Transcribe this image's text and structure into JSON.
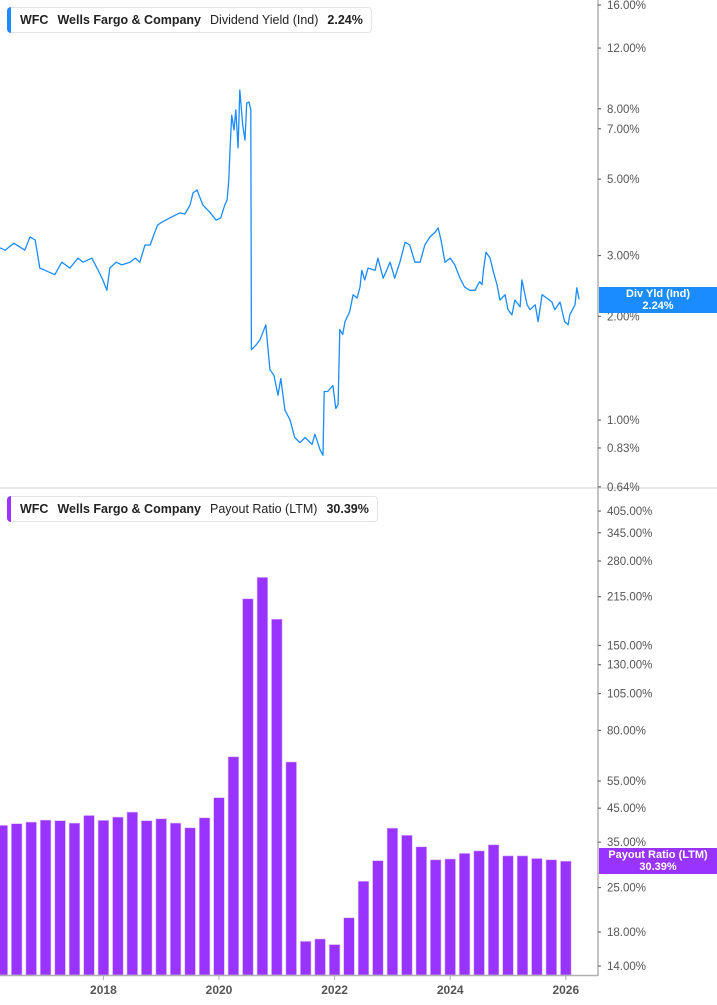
{
  "colors": {
    "yield": "#1a8cff",
    "payout": "#9933ff",
    "axis": "#b0b0b0",
    "text": "#555555"
  },
  "legends": [
    {
      "ticker": "WFC",
      "company": "Wells Fargo & Company",
      "metric": "Dividend Yield (Ind)",
      "value": "2.24%"
    },
    {
      "ticker": "WFC",
      "company": "Wells Fargo & Company",
      "metric": "Payout Ratio (LTM)",
      "value": "30.39%"
    }
  ],
  "tags": [
    {
      "label": "Div Yld (Ind)",
      "value": "2.24%"
    },
    {
      "label": "Payout Ratio (LTM)",
      "value": "30.39%"
    }
  ],
  "chart_data": [
    {
      "type": "line",
      "title": "Dividend Yield (Ind)",
      "yscale": "log",
      "ylim": [
        0.64,
        16
      ],
      "xlim": [
        2016.21,
        2026.56
      ],
      "yticks": [
        "16.00%",
        "12.00%",
        "8.00%",
        "7.00%",
        "5.00%",
        "3.00%",
        "2.00%",
        "1.00%",
        "0.83%",
        "0.64%"
      ],
      "ytick_values": [
        16,
        12,
        8,
        7,
        5,
        3,
        2,
        1,
        0.83,
        0.64
      ],
      "grid": false,
      "series": [
        {
          "name": "Dividend Yield (Ind)",
          "points": [
            [
              2016.21,
              3.16
            ],
            [
              2016.3,
              3.11
            ],
            [
              2016.45,
              3.26
            ],
            [
              2016.64,
              3.11
            ],
            [
              2016.73,
              3.4
            ],
            [
              2016.82,
              3.33
            ],
            [
              2016.9,
              2.76
            ],
            [
              2016.99,
              2.72
            ],
            [
              2017.16,
              2.64
            ],
            [
              2017.28,
              2.87
            ],
            [
              2017.42,
              2.76
            ],
            [
              2017.56,
              2.95
            ],
            [
              2017.65,
              2.87
            ],
            [
              2017.8,
              2.95
            ],
            [
              2017.91,
              2.72
            ],
            [
              2017.99,
              2.55
            ],
            [
              2018.06,
              2.38
            ],
            [
              2018.11,
              2.76
            ],
            [
              2018.22,
              2.87
            ],
            [
              2018.32,
              2.82
            ],
            [
              2018.46,
              2.87
            ],
            [
              2018.55,
              2.95
            ],
            [
              2018.63,
              2.87
            ],
            [
              2018.72,
              3.22
            ],
            [
              2018.81,
              3.22
            ],
            [
              2018.89,
              3.51
            ],
            [
              2018.94,
              3.68
            ],
            [
              2019.01,
              3.75
            ],
            [
              2019.15,
              3.86
            ],
            [
              2019.32,
              3.99
            ],
            [
              2019.41,
              3.96
            ],
            [
              2019.5,
              4.21
            ],
            [
              2019.55,
              4.56
            ],
            [
              2019.62,
              4.65
            ],
            [
              2019.72,
              4.21
            ],
            [
              2019.84,
              4.01
            ],
            [
              2019.95,
              3.8
            ],
            [
              2020.03,
              3.86
            ],
            [
              2020.1,
              4.21
            ],
            [
              2020.14,
              4.35
            ],
            [
              2020.17,
              4.97
            ],
            [
              2020.19,
              6.07
            ],
            [
              2020.22,
              7.67
            ],
            [
              2020.26,
              6.94
            ],
            [
              2020.29,
              7.94
            ],
            [
              2020.33,
              6.16
            ],
            [
              2020.36,
              9.07
            ],
            [
              2020.41,
              7.18
            ],
            [
              2020.45,
              6.49
            ],
            [
              2020.48,
              8.31
            ],
            [
              2020.52,
              8.37
            ],
            [
              2020.55,
              7.94
            ],
            [
              2020.56,
              1.6
            ],
            [
              2020.64,
              1.65
            ],
            [
              2020.71,
              1.71
            ],
            [
              2020.81,
              1.89
            ],
            [
              2020.88,
              1.4
            ],
            [
              2020.95,
              1.35
            ],
            [
              2021.02,
              1.18
            ],
            [
              2021.07,
              1.32
            ],
            [
              2021.14,
              1.07
            ],
            [
              2021.23,
              1.0
            ],
            [
              2021.31,
              0.89
            ],
            [
              2021.4,
              0.86
            ],
            [
              2021.49,
              0.89
            ],
            [
              2021.61,
              0.85
            ],
            [
              2021.66,
              0.91
            ],
            [
              2021.75,
              0.82
            ],
            [
              2021.8,
              0.79
            ],
            [
              2021.82,
              1.21
            ],
            [
              2021.88,
              1.21
            ],
            [
              2021.97,
              1.26
            ],
            [
              2022.02,
              1.08
            ],
            [
              2022.06,
              1.11
            ],
            [
              2022.09,
              1.83
            ],
            [
              2022.14,
              1.77
            ],
            [
              2022.18,
              1.93
            ],
            [
              2022.26,
              2.06
            ],
            [
              2022.32,
              2.31
            ],
            [
              2022.39,
              2.26
            ],
            [
              2022.44,
              2.43
            ],
            [
              2022.47,
              2.72
            ],
            [
              2022.52,
              2.55
            ],
            [
              2022.58,
              2.76
            ],
            [
              2022.7,
              2.72
            ],
            [
              2022.75,
              2.95
            ],
            [
              2022.84,
              2.58
            ],
            [
              2022.96,
              2.87
            ],
            [
              2023.04,
              2.58
            ],
            [
              2023.13,
              2.87
            ],
            [
              2023.22,
              3.28
            ],
            [
              2023.3,
              3.22
            ],
            [
              2023.39,
              2.87
            ],
            [
              2023.48,
              2.87
            ],
            [
              2023.56,
              3.22
            ],
            [
              2023.65,
              3.4
            ],
            [
              2023.74,
              3.51
            ],
            [
              2023.79,
              3.61
            ],
            [
              2023.84,
              3.33
            ],
            [
              2023.91,
              2.87
            ],
            [
              2024.0,
              2.95
            ],
            [
              2024.08,
              2.82
            ],
            [
              2024.17,
              2.58
            ],
            [
              2024.25,
              2.43
            ],
            [
              2024.34,
              2.38
            ],
            [
              2024.43,
              2.38
            ],
            [
              2024.48,
              2.47
            ],
            [
              2024.51,
              2.52
            ],
            [
              2024.55,
              2.47
            ],
            [
              2024.58,
              2.76
            ],
            [
              2024.62,
              3.07
            ],
            [
              2024.69,
              2.95
            ],
            [
              2024.74,
              2.72
            ],
            [
              2024.81,
              2.47
            ],
            [
              2024.86,
              2.23
            ],
            [
              2024.95,
              2.31
            ],
            [
              2025.0,
              2.09
            ],
            [
              2025.07,
              2.02
            ],
            [
              2025.12,
              2.23
            ],
            [
              2025.21,
              2.13
            ],
            [
              2025.24,
              2.55
            ],
            [
              2025.33,
              2.16
            ],
            [
              2025.38,
              2.09
            ],
            [
              2025.47,
              2.16
            ],
            [
              2025.52,
              1.93
            ],
            [
              2025.59,
              2.31
            ],
            [
              2025.67,
              2.26
            ],
            [
              2025.76,
              2.2
            ],
            [
              2025.81,
              2.09
            ],
            [
              2025.9,
              2.2
            ],
            [
              2025.98,
              1.93
            ],
            [
              2026.04,
              1.89
            ],
            [
              2026.07,
              2.02
            ],
            [
              2026.16,
              2.16
            ],
            [
              2026.19,
              2.42
            ],
            [
              2026.23,
              2.24
            ]
          ]
        }
      ]
    },
    {
      "type": "bar",
      "title": "Payout Ratio (LTM)",
      "yscale": "log",
      "ylim": [
        13,
        460
      ],
      "xlim": [
        2016.21,
        2026.56
      ],
      "xticks": [
        "2018",
        "2020",
        "2022",
        "2024",
        "2026"
      ],
      "xtick_values": [
        2018,
        2020,
        2022,
        2024,
        2026
      ],
      "yticks": [
        "405.00%",
        "345.00%",
        "280.00%",
        "215.00%",
        "150.00%",
        "130.00%",
        "105.00%",
        "80.00%",
        "55.00%",
        "45.00%",
        "35.00%",
        "25.00%",
        "18.00%",
        "14.00%"
      ],
      "ytick_values": [
        405,
        345,
        280,
        215,
        150,
        130,
        105,
        80,
        55,
        45,
        35,
        25,
        18,
        14
      ],
      "grid": false,
      "categories": [
        "2016-03",
        "2016-06",
        "2016-09",
        "2016-12",
        "2017-03",
        "2017-06",
        "2017-09",
        "2017-12",
        "2018-03",
        "2018-06",
        "2018-09",
        "2018-12",
        "2019-03",
        "2019-06",
        "2019-09",
        "2019-12",
        "2020-03",
        "2020-06",
        "2020-09",
        "2020-12",
        "2021-03",
        "2021-06",
        "2021-09",
        "2021-12",
        "2022-03",
        "2022-06",
        "2022-09",
        "2022-12",
        "2023-03",
        "2023-06",
        "2023-09",
        "2023-12",
        "2024-03",
        "2024-06",
        "2024-09",
        "2024-12",
        "2025-03",
        "2025-06",
        "2025-09",
        "2025-12"
      ],
      "values": [
        39.6,
        40.1,
        40.6,
        41.2,
        41.0,
        40.3,
        42.6,
        41.1,
        42.1,
        43.7,
        41.0,
        41.6,
        40.3,
        38.9,
        41.9,
        48.6,
        65.8,
        211.7,
        248.0,
        182.0,
        63.3,
        16.8,
        17.1,
        16.4,
        20.0,
        26.2,
        30.5,
        38.8,
        36.8,
        33.8,
        30.7,
        30.9,
        32.2,
        32.8,
        34.3,
        31.6,
        31.6,
        31.0,
        30.7,
        30.39
      ]
    }
  ]
}
